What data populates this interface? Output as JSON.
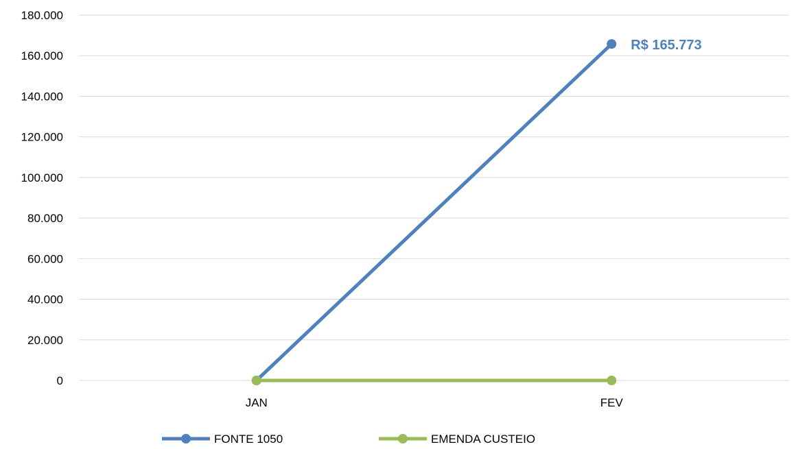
{
  "chart_data": {
    "type": "line",
    "categories": [
      "JAN",
      "FEV"
    ],
    "ylim": [
      0,
      180000
    ],
    "y_ticks": [
      0,
      20000,
      40000,
      60000,
      80000,
      100000,
      120000,
      140000,
      160000,
      180000
    ],
    "y_tick_labels": [
      "0",
      "20.000",
      "40.000",
      "60.000",
      "80.000",
      "100.000",
      "120.000",
      "140.000",
      "160.000",
      "180.000"
    ],
    "grid": "horizontal",
    "legend_position": "bottom",
    "series": [
      {
        "name": "FONTE 1050",
        "color": "#4F81BD",
        "values": [
          0,
          165773
        ],
        "data_labels": [
          "",
          "R$ 165.773"
        ]
      },
      {
        "name": "EMENDA CUSTEIO",
        "color": "#9BBB59",
        "values": [
          0,
          0
        ],
        "data_labels": [
          "",
          ""
        ]
      }
    ]
  }
}
